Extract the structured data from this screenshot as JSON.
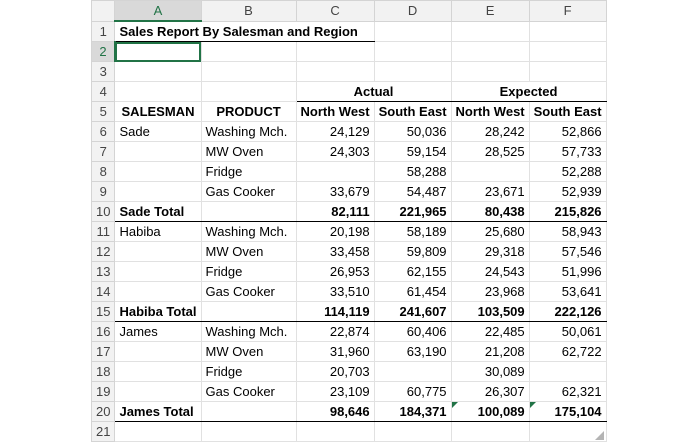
{
  "columns": [
    "A",
    "B",
    "C",
    "D",
    "E",
    "F"
  ],
  "title": "Sales Report By Salesman and Region",
  "groups": {
    "actual": "Actual",
    "expected": "Expected"
  },
  "headers": {
    "salesman": "SALESMAN",
    "product": "PRODUCT",
    "nw1": "North West",
    "se1": "South East",
    "nw2": "North West",
    "se2": "South East"
  },
  "rows": [
    {
      "n": "6",
      "a": "Sade",
      "b": "Washing Mch.",
      "c": "24,129",
      "d": "50,036",
      "e": "28,242",
      "f": "52,866"
    },
    {
      "n": "7",
      "a": "",
      "b": "MW Oven",
      "c": "24,303",
      "d": "59,154",
      "e": "28,525",
      "f": "57,733"
    },
    {
      "n": "8",
      "a": "",
      "b": "Fridge",
      "c": "",
      "d": "58,288",
      "e": "",
      "f": "52,288"
    },
    {
      "n": "9",
      "a": "",
      "b": "Gas Cooker",
      "c": "33,679",
      "d": "54,487",
      "e": "23,671",
      "f": "52,939"
    },
    {
      "n": "10",
      "a": "Sade Total",
      "b": "",
      "c": "82,111",
      "d": "221,965",
      "e": "80,438",
      "f": "215,826",
      "total": true
    },
    {
      "n": "11",
      "a": "Habiba",
      "b": "Washing Mch.",
      "c": "20,198",
      "d": "58,189",
      "e": "25,680",
      "f": "58,943"
    },
    {
      "n": "12",
      "a": "",
      "b": "MW Oven",
      "c": "33,458",
      "d": "59,809",
      "e": "29,318",
      "f": "57,546"
    },
    {
      "n": "13",
      "a": "",
      "b": "Fridge",
      "c": "26,953",
      "d": "62,155",
      "e": "24,543",
      "f": "51,996"
    },
    {
      "n": "14",
      "a": "",
      "b": "Gas Cooker",
      "c": "33,510",
      "d": "61,454",
      "e": "23,968",
      "f": "53,641"
    },
    {
      "n": "15",
      "a": "Habiba Total",
      "b": "",
      "c": "114,119",
      "d": "241,607",
      "e": "103,509",
      "f": "222,126",
      "total": true
    },
    {
      "n": "16",
      "a": "James",
      "b": "Washing Mch.",
      "c": "22,874",
      "d": "60,406",
      "e": "22,485",
      "f": "50,061"
    },
    {
      "n": "17",
      "a": "",
      "b": "MW Oven",
      "c": "31,960",
      "d": "63,190",
      "e": "21,208",
      "f": "62,722"
    },
    {
      "n": "18",
      "a": "",
      "b": "Fridge",
      "c": "20,703",
      "d": "",
      "e": "30,089",
      "f": ""
    },
    {
      "n": "19",
      "a": "",
      "b": "Gas Cooker",
      "c": "23,109",
      "d": "60,775",
      "e": "26,307",
      "f": "62,321"
    },
    {
      "n": "20",
      "a": "James Total",
      "b": "",
      "c": "98,646",
      "d": "184,371",
      "e": "100,089",
      "f": "175,104",
      "total": true
    }
  ],
  "row_numbers": {
    "r1": "1",
    "r2": "2",
    "r3": "3",
    "r4": "4",
    "r5": "5",
    "r21": "21"
  }
}
